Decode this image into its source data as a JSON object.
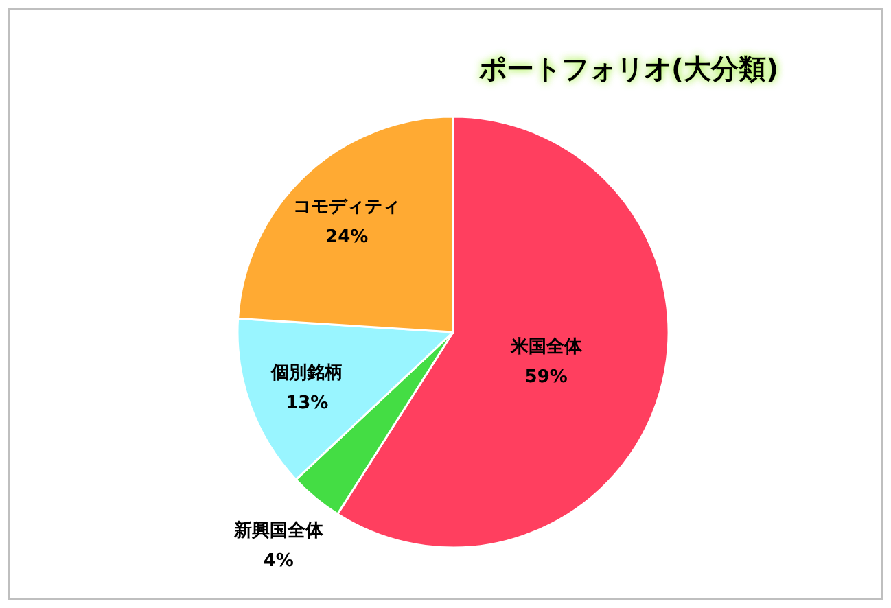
{
  "chart_data": {
    "type": "pie",
    "title": "ポートフォリオ(大分類)",
    "categories": [
      "米国全体",
      "新興国全体",
      "個別銘柄",
      "コモディティ"
    ],
    "values": [
      59,
      4,
      13,
      24
    ],
    "colors": [
      "#ff3f5f",
      "#44dd44",
      "#99f5ff",
      "#ffaa33"
    ],
    "value_labels": [
      "59%",
      "4%",
      "13%",
      "24%"
    ],
    "legend": false
  }
}
